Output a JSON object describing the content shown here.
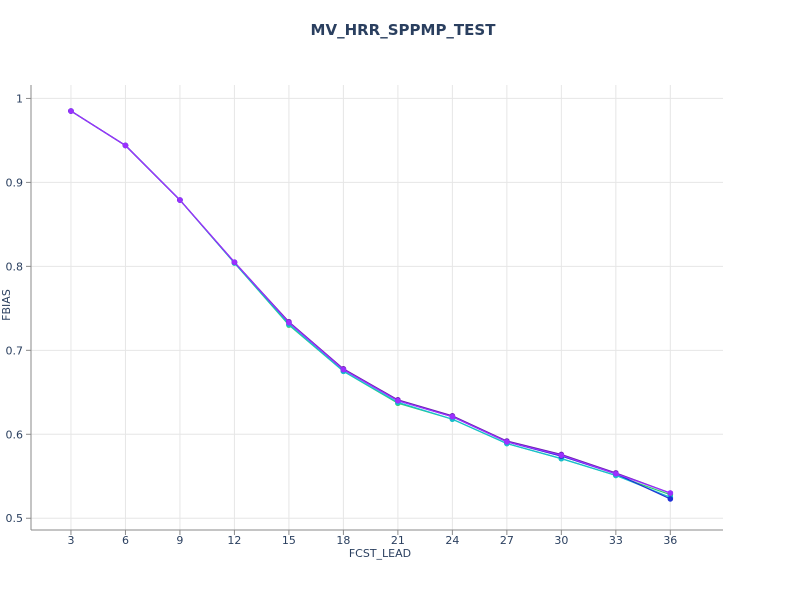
{
  "chart_data": {
    "type": "line",
    "title": "MV_HRR_SPPMP_TEST",
    "xlabel": "FCST_LEAD",
    "ylabel": "FBIAS",
    "x": [
      3,
      6,
      9,
      12,
      15,
      18,
      21,
      24,
      27,
      30,
      33,
      36
    ],
    "xlim": [
      0.8,
      38.9
    ],
    "ylim": [
      0.486,
      1.016
    ],
    "yticks": [
      0.5,
      0.6,
      0.7,
      0.8,
      0.9,
      1
    ],
    "ytick_labels": [
      "0.5",
      "0.6",
      "0.7",
      "0.8",
      "0.9",
      "1"
    ],
    "grid": true,
    "legend": "none",
    "series": [
      {
        "color": "#2ecc71",
        "values": [
          0.985,
          0.944,
          0.879,
          0.804,
          0.73,
          0.675,
          0.637,
          0.618,
          0.589,
          0.571,
          0.551,
          0.528
        ]
      },
      {
        "color": "#17becf",
        "values": [
          0.985,
          0.944,
          0.879,
          0.804,
          0.731,
          0.675,
          0.638,
          0.618,
          0.589,
          0.571,
          0.551,
          0.525
        ]
      },
      {
        "color": "#1f2fd6",
        "values": [
          0.985,
          0.944,
          0.879,
          0.805,
          0.733,
          0.677,
          0.64,
          0.621,
          0.591,
          0.574,
          0.553,
          0.523
        ]
      },
      {
        "color": "#6a1fb0",
        "values": [
          0.985,
          0.944,
          0.879,
          0.805,
          0.734,
          0.678,
          0.641,
          0.622,
          0.592,
          0.576,
          0.554,
          0.53
        ]
      },
      {
        "color": "#9b30ff",
        "values": [
          0.985,
          0.944,
          0.879,
          0.805,
          0.733,
          0.677,
          0.64,
          0.621,
          0.591,
          0.575,
          0.553,
          0.53
        ]
      }
    ]
  }
}
